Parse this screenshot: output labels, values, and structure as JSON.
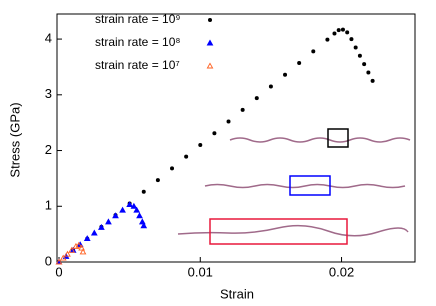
{
  "chart_data": {
    "type": "scatter",
    "xlabel": "Strain",
    "ylabel": "Stress (GPa)",
    "xlim": [
      0,
      0.0252
    ],
    "ylim": [
      0,
      4.45
    ],
    "xticks": [
      0,
      0.01,
      0.02
    ],
    "yticks": [
      0,
      1,
      2,
      3,
      4
    ],
    "series": [
      {
        "name": "strain rate = 10⁹",
        "color": "#000000",
        "marker": "dot",
        "x": [
          0,
          0.001,
          0.002,
          0.003,
          0.004,
          0.005,
          0.006,
          0.007,
          0.008,
          0.009,
          0.01,
          0.011,
          0.012,
          0.013,
          0.014,
          0.015,
          0.016,
          0.017,
          0.018,
          0.019,
          0.0195,
          0.0198,
          0.0201,
          0.0204,
          0.0207,
          0.021,
          0.0213,
          0.0216,
          0.0219,
          0.0222
        ],
        "values": [
          0,
          0.21,
          0.42,
          0.63,
          0.84,
          1.05,
          1.26,
          1.47,
          1.68,
          1.89,
          2.1,
          2.31,
          2.52,
          2.73,
          2.94,
          3.15,
          3.36,
          3.57,
          3.78,
          3.99,
          4.1,
          4.16,
          4.17,
          4.12,
          4.0,
          3.85,
          3.7,
          3.55,
          3.4,
          3.25
        ]
      },
      {
        "name": "strain rate = 10⁸",
        "color": "#0000ff",
        "marker": "triangle",
        "x": [
          0,
          0.0005,
          0.001,
          0.0015,
          0.002,
          0.0025,
          0.003,
          0.0035,
          0.004,
          0.0045,
          0.005,
          0.0053,
          0.0055,
          0.0057,
          0.0059,
          0.006
        ],
        "values": [
          0,
          0.1,
          0.21,
          0.31,
          0.42,
          0.52,
          0.62,
          0.72,
          0.83,
          0.93,
          1.03,
          1.0,
          0.93,
          0.83,
          0.72,
          0.65
        ]
      },
      {
        "name": "strain rate = 10⁷",
        "color": "#ff6020",
        "marker": "open-triangle",
        "x": [
          0,
          0.0003,
          0.0006,
          0.0009,
          0.0012,
          0.0014,
          0.0016,
          0.0017
        ],
        "values": [
          0,
          0.07,
          0.14,
          0.21,
          0.28,
          0.3,
          0.25,
          0.18
        ]
      }
    ]
  }
}
